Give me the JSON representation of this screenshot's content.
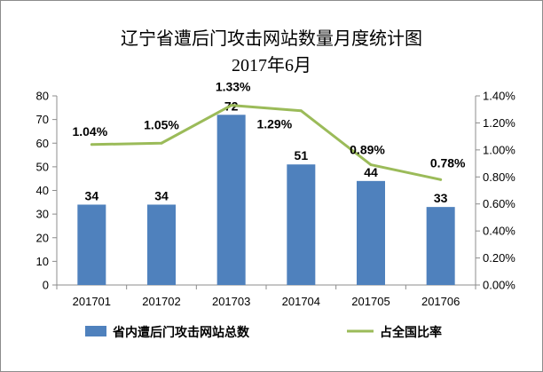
{
  "chart_data": {
    "type": "bar+line",
    "title": "辽宁省遭后门攻击网站数量月度统计图",
    "subtitle": "2017年6月",
    "categories": [
      "201701",
      "201702",
      "201703",
      "201704",
      "201705",
      "201706"
    ],
    "series": [
      {
        "name": "省内遭后门攻击网站总数",
        "type": "bar",
        "axis": "left",
        "values": [
          34,
          34,
          72,
          51,
          44,
          33
        ],
        "labels": [
          "34",
          "34",
          "72",
          "51",
          "44",
          "33"
        ],
        "color": "#4f81bd"
      },
      {
        "name": "占全国比率",
        "type": "line",
        "axis": "right",
        "values": [
          1.04,
          1.05,
          1.33,
          1.29,
          0.89,
          0.78
        ],
        "labels": [
          "1.04%",
          "1.05%",
          "1.33%",
          "1.29%",
          "0.89%",
          "0.78%"
        ],
        "color": "#9bbb59"
      }
    ],
    "y_left": {
      "min": 0,
      "max": 80,
      "ticks": [
        "0",
        "10",
        "20",
        "30",
        "40",
        "50",
        "60",
        "70",
        "80"
      ]
    },
    "y_right": {
      "min": 0,
      "max": 1.4,
      "ticks": [
        "0.00%",
        "0.20%",
        "0.40%",
        "0.60%",
        "0.80%",
        "1.00%",
        "1.20%",
        "1.40%"
      ]
    },
    "grid": false,
    "legend": "bottom"
  }
}
